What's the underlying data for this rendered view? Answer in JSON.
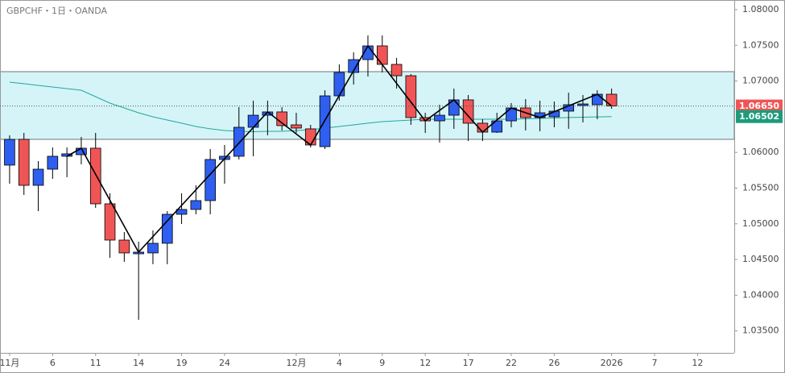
{
  "chart_data": {
    "type": "candlestick",
    "title": "GBPCHF・1日・OANDA",
    "up_color": "#2f5ff0",
    "down_color": "#f05556",
    "zone": [
      1.06183,
      1.07131
    ],
    "zone_color": "#d4f4f8",
    "xlim": [
      -0.67,
      50.56
    ],
    "ylim": [
      1.03192,
      1.08135
    ],
    "xticks": [
      {
        "value": 0,
        "label": "11月"
      },
      {
        "value": 3,
        "label": "6"
      },
      {
        "value": 6,
        "label": "11"
      },
      {
        "value": 9,
        "label": "14"
      },
      {
        "value": 12,
        "label": "19"
      },
      {
        "value": 15,
        "label": "24"
      },
      {
        "value": 20,
        "label": "12月"
      },
      {
        "value": 23,
        "label": "4"
      },
      {
        "value": 26,
        "label": "9"
      },
      {
        "value": 29,
        "label": "12"
      },
      {
        "value": 32,
        "label": "17"
      },
      {
        "value": 35,
        "label": "22"
      },
      {
        "value": 38,
        "label": "26"
      },
      {
        "value": 42,
        "label": "2026"
      },
      {
        "value": 45,
        "label": "7"
      },
      {
        "value": 48,
        "label": "12"
      }
    ],
    "yticks": [
      {
        "value": 1.08,
        "label": "1.08000"
      },
      {
        "value": 1.075,
        "label": "1.07500"
      },
      {
        "value": 1.07,
        "label": "1.07000"
      },
      {
        "value": 1.06,
        "label": "1.06000"
      },
      {
        "value": 1.055,
        "label": "1.05500"
      },
      {
        "value": 1.05,
        "label": "1.05000"
      },
      {
        "value": 1.045,
        "label": "1.04500"
      },
      {
        "value": 1.04,
        "label": "1.04000"
      },
      {
        "value": 1.035,
        "label": "1.03500"
      }
    ],
    "open": [
      1.05822,
      1.06183,
      1.05539,
      1.05765,
      1.05946,
      1.05968,
      1.06059,
      1.0528,
      1.04772,
      1.0458,
      1.04592,
      1.04727,
      1.05133,
      1.05201,
      1.05325,
      1.05901,
      1.05946,
      1.06352,
      1.06521,
      1.06567,
      1.06386,
      1.0633,
      1.06081,
      1.06792,
      1.0712,
      1.073,
      1.07492,
      1.07233,
      1.07074,
      1.06488,
      1.06442,
      1.06521,
      1.06736,
      1.06409,
      1.06284,
      1.06442,
      1.06623,
      1.06488,
      1.06499,
      1.06578,
      1.06657,
      1.06668,
      1.06815
    ],
    "high": [
      1.06239,
      1.06273,
      1.05878,
      1.0607,
      1.0607,
      1.06217,
      1.06273,
      1.05427,
      1.04885,
      1.04749,
      1.04907,
      1.05178,
      1.05427,
      1.05539,
      1.06047,
      1.06104,
      1.06634,
      1.06725,
      1.06725,
      1.06634,
      1.06555,
      1.06386,
      1.06871,
      1.07233,
      1.07402,
      1.07639,
      1.07639,
      1.07323,
      1.07097,
      1.06555,
      1.06668,
      1.06894,
      1.06804,
      1.06465,
      1.06555,
      1.06691,
      1.06747,
      1.06725,
      1.06713,
      1.06837,
      1.06804,
      1.06871,
      1.06894
    ],
    "low": [
      1.05562,
      1.05404,
      1.05178,
      1.0563,
      1.05652,
      1.05833,
      1.05223,
      1.04524,
      1.04467,
      1.03655,
      1.04433,
      1.04433,
      1.04998,
      1.05133,
      1.05133,
      1.05562,
      1.05901,
      1.05946,
      1.06239,
      1.06307,
      1.06273,
      1.0607,
      1.06047,
      1.06725,
      1.0695,
      1.07063,
      1.0712,
      1.06894,
      1.06386,
      1.06273,
      1.06138,
      1.0633,
      1.0616,
      1.0616,
      1.06273,
      1.06352,
      1.06307,
      1.06296,
      1.06352,
      1.0633,
      1.0642,
      1.06465,
      1.06612
    ],
    "close": [
      1.06183,
      1.05539,
      1.05765,
      1.05946,
      1.0598,
      1.06059,
      1.0528,
      1.04772,
      1.04592,
      1.04603,
      1.04727,
      1.05133,
      1.05201,
      1.05325,
      1.05901,
      1.05946,
      1.06352,
      1.06521,
      1.06567,
      1.06375,
      1.06341,
      1.06104,
      1.06792,
      1.0712,
      1.073,
      1.07492,
      1.07233,
      1.07074,
      1.06488,
      1.06442,
      1.06521,
      1.06736,
      1.06409,
      1.06284,
      1.06442,
      1.06623,
      1.06488,
      1.06555,
      1.06578,
      1.06668,
      1.06679,
      1.06815,
      1.0665
    ],
    "ma": {
      "color": "#26a69a",
      "values": [
        1.06984,
        1.06962,
        1.06939,
        1.06916,
        1.06894,
        1.06871,
        1.06781,
        1.06691,
        1.06623,
        1.06555,
        1.06499,
        1.06454,
        1.06409,
        1.06363,
        1.0633,
        1.06307,
        1.06296,
        1.0629,
        1.06296,
        1.06296,
        1.06307,
        1.06318,
        1.06341,
        1.06363,
        1.06386,
        1.06409,
        1.06431,
        1.06442,
        1.06454,
        1.06465,
        1.06465,
        1.06465,
        1.06465,
        1.06465,
        1.06465,
        1.06465,
        1.0647,
        1.06476,
        1.06482,
        1.06488,
        1.06493,
        1.06498,
        1.06502
      ]
    },
    "zigzag": {
      "color": "#000000",
      "x": [
        4,
        5,
        9,
        18,
        21,
        25,
        29,
        31,
        33,
        35,
        37,
        41,
        42
      ],
      "values": [
        1.05946,
        1.06059,
        1.04603,
        1.06567,
        1.06104,
        1.07492,
        1.06442,
        1.06736,
        1.06284,
        1.06623,
        1.06488,
        1.06815,
        1.0665
      ]
    },
    "price_labels": [
      {
        "value": 1.0665,
        "label": "1.06650",
        "color": "#f05556"
      },
      {
        "value": 1.06502,
        "label": "1.06502",
        "color": "#1e9b7a"
      }
    ]
  }
}
